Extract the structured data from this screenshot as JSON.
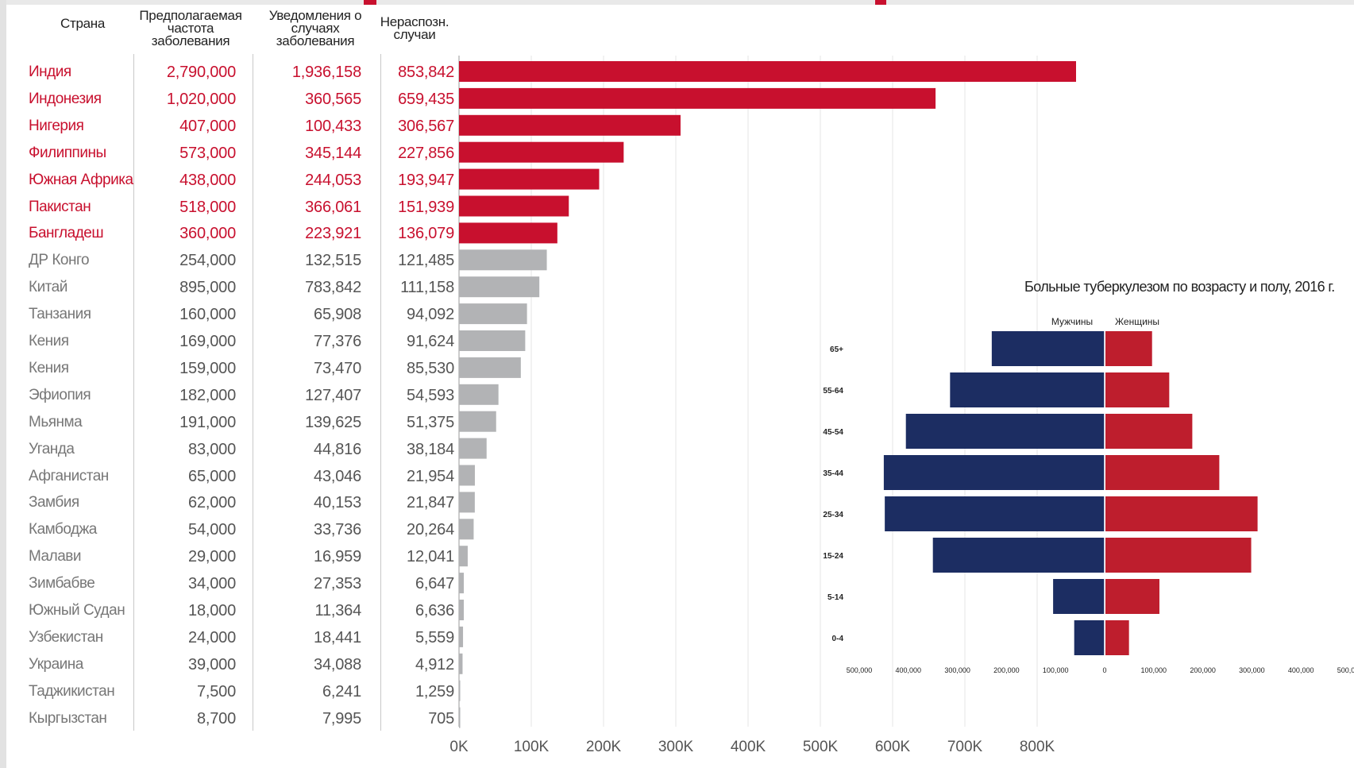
{
  "colors": {
    "highlight": "#c8102e",
    "bar_grey": "#b2b3b5",
    "men": "#1c2d62",
    "women": "#be1e2d",
    "grid": "#e6e6e6"
  },
  "table": {
    "headers": {
      "country": "Страна",
      "incidence": "Предполагаемая частота заболевания",
      "notified": "Уведомления о случаях заболевания",
      "missed": "Нераспозн. случаи"
    },
    "rows": [
      {
        "country": "Индия",
        "incidence": "2,790,000",
        "notified": "1,936,158",
        "missed": "853,842",
        "highlight": true
      },
      {
        "country": "Индонезия",
        "incidence": "1,020,000",
        "notified": "360,565",
        "missed": "659,435",
        "highlight": true
      },
      {
        "country": "Нигерия",
        "incidence": "407,000",
        "notified": "100,433",
        "missed": "306,567",
        "highlight": true
      },
      {
        "country": "Филиппины",
        "incidence": "573,000",
        "notified": "345,144",
        "missed": "227,856",
        "highlight": true
      },
      {
        "country": "Южная Африка",
        "incidence": "438,000",
        "notified": "244,053",
        "missed": "193,947",
        "highlight": true
      },
      {
        "country": "Пакистан",
        "incidence": "518,000",
        "notified": "366,061",
        "missed": "151,939",
        "highlight": true
      },
      {
        "country": "Бангладеш",
        "incidence": "360,000",
        "notified": "223,921",
        "missed": "136,079",
        "highlight": true
      },
      {
        "country": "ДР Конго",
        "incidence": "254,000",
        "notified": "132,515",
        "missed": "121,485",
        "highlight": false
      },
      {
        "country": "Китай",
        "incidence": "895,000",
        "notified": "783,842",
        "missed": "111,158",
        "highlight": false
      },
      {
        "country": "Танзания",
        "incidence": "160,000",
        "notified": "65,908",
        "missed": "94,092",
        "highlight": false
      },
      {
        "country": "Кения",
        "incidence": "169,000",
        "notified": "77,376",
        "missed": "91,624",
        "highlight": false
      },
      {
        "country": "Кения",
        "incidence": "159,000",
        "notified": "73,470",
        "missed": "85,530",
        "highlight": false
      },
      {
        "country": "Эфиопия",
        "incidence": "182,000",
        "notified": "127,407",
        "missed": "54,593",
        "highlight": false
      },
      {
        "country": "Мьянма",
        "incidence": "191,000",
        "notified": "139,625",
        "missed": "51,375",
        "highlight": false
      },
      {
        "country": "Уганда",
        "incidence": "83,000",
        "notified": "44,816",
        "missed": "38,184",
        "highlight": false
      },
      {
        "country": "Афганистан",
        "incidence": "65,000",
        "notified": "43,046",
        "missed": "21,954",
        "highlight": false
      },
      {
        "country": "Замбия",
        "incidence": "62,000",
        "notified": "40,153",
        "missed": "21,847",
        "highlight": false
      },
      {
        "country": "Камбоджа",
        "incidence": "54,000",
        "notified": "33,736",
        "missed": "20,264",
        "highlight": false
      },
      {
        "country": "Малави",
        "incidence": "29,000",
        "notified": "16,959",
        "missed": "12,041",
        "highlight": false
      },
      {
        "country": "Зимбабве",
        "incidence": "34,000",
        "notified": "27,353",
        "missed": "6,647",
        "highlight": false
      },
      {
        "country": "Южный Судан",
        "incidence": "18,000",
        "notified": "11,364",
        "missed": "6,636",
        "highlight": false
      },
      {
        "country": "Узбекистан",
        "incidence": "24,000",
        "notified": "18,441",
        "missed": "5,559",
        "highlight": false
      },
      {
        "country": "Украина",
        "incidence": "39,000",
        "notified": "34,088",
        "missed": "4,912",
        "highlight": false
      },
      {
        "country": "Таджикистан",
        "incidence": "7,500",
        "notified": "6,241",
        "missed": "1,259",
        "highlight": false
      },
      {
        "country": "Кыргызстан",
        "incidence": "8,700",
        "notified": "7,995",
        "missed": "705",
        "highlight": false
      }
    ]
  },
  "chart_data": [
    {
      "type": "bar",
      "orientation": "horizontal",
      "categories": [
        "Индия",
        "Индонезия",
        "Нигерия",
        "Филиппины",
        "Южная Африка",
        "Пакистан",
        "Бангладеш",
        "ДР Конго",
        "Китай",
        "Танзания",
        "Кения",
        "Кения",
        "Эфиопия",
        "Мьянма",
        "Уганда",
        "Афганистан",
        "Замбия",
        "Камбоджа",
        "Малави",
        "Зимбабве",
        "Южный Судан",
        "Узбекистан",
        "Украина",
        "Таджикистан",
        "Кыргызстан"
      ],
      "values": [
        853842,
        659435,
        306567,
        227856,
        193947,
        151939,
        136079,
        121485,
        111158,
        94092,
        91624,
        85530,
        54593,
        51375,
        38184,
        21954,
        21847,
        20264,
        12041,
        6647,
        6636,
        5559,
        4912,
        1259,
        705
      ],
      "highlight_count": 7,
      "xlim": [
        0,
        900000
      ],
      "xticks": [
        0,
        100000,
        200000,
        300000,
        400000,
        500000,
        600000,
        700000,
        800000
      ],
      "xtick_labels": [
        "0K",
        "100K",
        "200K",
        "300K",
        "400K",
        "500K",
        "600K",
        "700K",
        "800K"
      ],
      "grid": true
    },
    {
      "type": "bar",
      "subtype": "population-pyramid",
      "title": "Больные туберкулезом по возрасту и полу, 2016 г.",
      "categories": [
        "65+",
        "55-64",
        "45-54",
        "35-44",
        "25-34",
        "15-24",
        "5-14",
        "0-4"
      ],
      "series": [
        {
          "name": "Мужчины",
          "values": [
            230000,
            315000,
            405000,
            450000,
            448000,
            350000,
            105000,
            62000
          ]
        },
        {
          "name": "Женщины",
          "values": [
            95000,
            130000,
            177000,
            232000,
            310000,
            297000,
            110000,
            48000
          ]
        }
      ],
      "xlim": [
        -500000,
        500000
      ],
      "xtick_labels": [
        "500,000",
        "400,000",
        "300,000",
        "200,000",
        "100,000",
        "0",
        "100,000",
        "200,000",
        "300,000",
        "400,000",
        "500,000"
      ],
      "grid": false
    }
  ]
}
